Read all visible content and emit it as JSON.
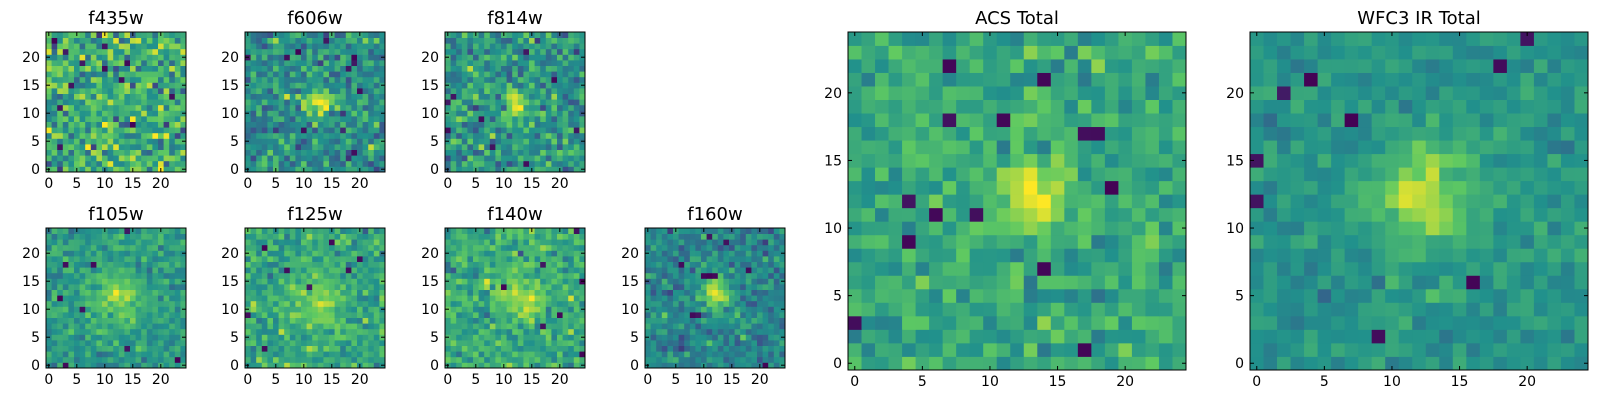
{
  "chart_data": [
    {
      "type": "heatmap",
      "title": "f435w",
      "grid": 25,
      "xticks": [
        0,
        5,
        10,
        15,
        20
      ],
      "yticks": [
        0,
        5,
        10,
        15,
        20
      ],
      "source": {
        "cx": 12.5,
        "cy": 12,
        "sigma": 3.2,
        "amp": 0.05
      },
      "noise": 0.34,
      "base": 0.62,
      "dark_pixels": 12
    },
    {
      "type": "heatmap",
      "title": "f606w",
      "grid": 25,
      "xticks": [
        0,
        5,
        10,
        15,
        20
      ],
      "yticks": [
        0,
        5,
        10,
        15,
        20
      ],
      "source": {
        "cx": 12.5,
        "cy": 12,
        "sigma": 1.8,
        "amp": 0.45
      },
      "noise": 0.26,
      "base": 0.5,
      "dark_pixels": 10
    },
    {
      "type": "heatmap",
      "title": "f814w",
      "grid": 25,
      "xticks": [
        0,
        5,
        10,
        15,
        20
      ],
      "yticks": [
        0,
        5,
        10,
        15,
        20
      ],
      "source": {
        "cx": 12.5,
        "cy": 12,
        "sigma": 1.8,
        "amp": 0.45
      },
      "noise": 0.26,
      "base": 0.52,
      "dark_pixels": 8
    },
    {
      "type": "heatmap",
      "title": "f105w",
      "grid": 25,
      "xticks": [
        0,
        5,
        10,
        15,
        20
      ],
      "yticks": [
        0,
        5,
        10,
        15,
        20
      ],
      "source": {
        "cx": 12,
        "cy": 12,
        "sigma": 3.0,
        "amp": 0.3
      },
      "noise": 0.16,
      "base": 0.55,
      "dark_pixels": 8
    },
    {
      "type": "heatmap",
      "title": "f125w",
      "grid": 25,
      "xticks": [
        0,
        5,
        10,
        15,
        20
      ],
      "yticks": [
        0,
        5,
        10,
        15,
        20
      ],
      "source": {
        "cx": 13,
        "cy": 12,
        "sigma": 3.0,
        "amp": 0.2
      },
      "noise": 0.2,
      "base": 0.6,
      "dark_pixels": 8
    },
    {
      "type": "heatmap",
      "title": "f140w",
      "grid": 25,
      "xticks": [
        0,
        5,
        10,
        15,
        20
      ],
      "yticks": [
        0,
        5,
        10,
        15,
        20
      ],
      "source": {
        "cx": 13,
        "cy": 12,
        "sigma": 3.0,
        "amp": 0.25
      },
      "noise": 0.2,
      "base": 0.6,
      "dark_pixels": 7
    },
    {
      "type": "heatmap",
      "title": "f160w",
      "grid": 25,
      "xticks": [
        0,
        5,
        10,
        15,
        20
      ],
      "yticks": [
        0,
        5,
        10,
        15,
        20
      ],
      "source": {
        "cx": 12,
        "cy": 13,
        "sigma": 2.0,
        "amp": 0.5
      },
      "noise": 0.18,
      "base": 0.45,
      "dark_pixels": 10
    },
    {
      "type": "heatmap",
      "title": "ACS Total",
      "grid": 25,
      "xticks": [
        0,
        5,
        10,
        15,
        20
      ],
      "yticks": [
        0,
        5,
        10,
        15,
        20
      ],
      "source": {
        "cx": 13,
        "cy": 12.5,
        "sigma": 2.0,
        "amp": 0.35
      },
      "noise": 0.18,
      "base": 0.6,
      "dark_pixels": 14
    },
    {
      "type": "heatmap",
      "title": "WFC3 IR Total",
      "grid": 25,
      "xticks": [
        0,
        5,
        10,
        15,
        20
      ],
      "yticks": [
        0,
        5,
        10,
        15,
        20
      ],
      "source": {
        "cx": 12.5,
        "cy": 12.5,
        "sigma": 2.4,
        "amp": 0.4
      },
      "noise": 0.12,
      "base": 0.52,
      "dark_pixels": 9
    }
  ]
}
